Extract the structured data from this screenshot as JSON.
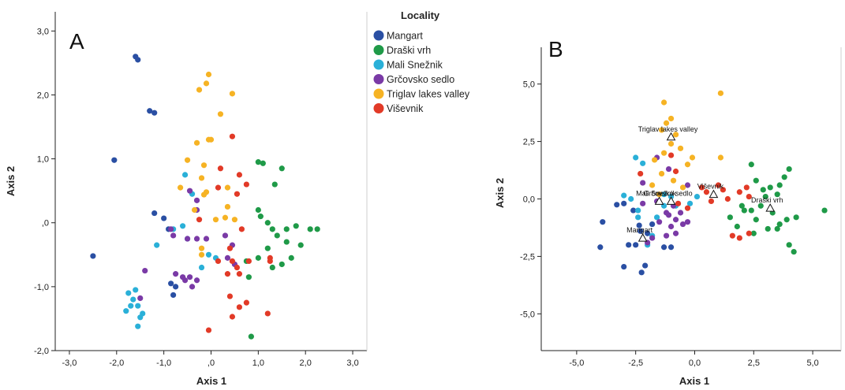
{
  "legend": {
    "title": "Locality"
  },
  "colors": {
    "Mangart": "#2a4fa3",
    "Draški vrh": "#1f9a48",
    "Mali Snežnik": "#2ab0d8",
    "Grčovsko sedlo": "#7a3aa6",
    "Triglav lakes valley": "#f6b324",
    "Viševnik": "#e23a27"
  },
  "chart_data": [
    {
      "type": "scatter",
      "panel": "A",
      "xlabel": "Axis 1",
      "ylabel": "Axis 2",
      "xlim": [
        -3.3,
        3.3
      ],
      "ylim": [
        -2.0,
        3.3
      ],
      "xticks": [
        -3,
        -2,
        -1,
        0,
        1,
        2,
        3
      ],
      "xtick_labels": [
        "-3,0",
        "-2,0",
        "-1,0",
        ",0",
        "1,0",
        "2,0",
        "3,0"
      ],
      "yticks": [
        -2,
        -1,
        0,
        1,
        2,
        3
      ],
      "ytick_labels": [
        "-2,0",
        "-1,0",
        ",0",
        "1,0",
        "2,0",
        "3,0"
      ],
      "series": [
        {
          "name": "Mangart",
          "points": [
            [
              -1.6,
              2.6
            ],
            [
              -1.55,
              2.55
            ],
            [
              -1.3,
              1.75
            ],
            [
              -1.2,
              1.72
            ],
            [
              -2.05,
              0.98
            ],
            [
              -2.5,
              -0.52
            ],
            [
              -1.2,
              0.15
            ],
            [
              -1.0,
              0.07
            ],
            [
              -0.9,
              -0.1
            ],
            [
              -0.85,
              -0.95
            ],
            [
              -0.75,
              -1.0
            ],
            [
              -0.8,
              -1.13
            ]
          ]
        },
        {
          "name": "Draški vrh",
          "points": [
            [
              1.0,
              0.95
            ],
            [
              1.1,
              0.93
            ],
            [
              1.5,
              0.85
            ],
            [
              1.35,
              0.6
            ],
            [
              1.0,
              0.2
            ],
            [
              1.05,
              0.1
            ],
            [
              1.2,
              0.0
            ],
            [
              1.3,
              -0.1
            ],
            [
              1.6,
              -0.1
            ],
            [
              1.8,
              -0.05
            ],
            [
              2.1,
              -0.1
            ],
            [
              2.25,
              -0.1
            ],
            [
              1.4,
              -0.2
            ],
            [
              1.6,
              -0.3
            ],
            [
              1.9,
              -0.35
            ],
            [
              1.2,
              -0.4
            ],
            [
              1.7,
              -0.55
            ],
            [
              1.5,
              -0.65
            ],
            [
              1.3,
              -0.7
            ],
            [
              1.0,
              -0.55
            ],
            [
              0.75,
              -0.6
            ],
            [
              0.8,
              -0.85
            ],
            [
              0.85,
              -1.78
            ]
          ]
        },
        {
          "name": "Mali Snežnik",
          "points": [
            [
              -0.55,
              0.75
            ],
            [
              -0.4,
              0.45
            ],
            [
              -0.8,
              -0.1
            ],
            [
              -0.6,
              -0.05
            ],
            [
              -0.5,
              -0.25
            ],
            [
              -1.15,
              -0.35
            ],
            [
              -0.05,
              -0.5
            ],
            [
              0.1,
              -0.55
            ],
            [
              -0.2,
              -0.7
            ],
            [
              -1.6,
              -1.05
            ],
            [
              -1.75,
              -1.1
            ],
            [
              -1.65,
              -1.2
            ],
            [
              -1.7,
              -1.3
            ],
            [
              -1.55,
              -1.3
            ],
            [
              -1.45,
              -1.42
            ],
            [
              -1.8,
              -1.38
            ],
            [
              -1.5,
              -1.48
            ],
            [
              -1.55,
              -1.62
            ]
          ]
        },
        {
          "name": "Grčovsko sedlo",
          "points": [
            [
              -0.45,
              0.5
            ],
            [
              -0.3,
              0.35
            ],
            [
              -0.3,
              0.2
            ],
            [
              -0.85,
              -0.1
            ],
            [
              -0.8,
              -0.2
            ],
            [
              -0.5,
              -0.25
            ],
            [
              -0.3,
              -0.25
            ],
            [
              -0.1,
              -0.25
            ],
            [
              0.3,
              -0.2
            ],
            [
              0.45,
              -0.35
            ],
            [
              0.35,
              -0.55
            ],
            [
              0.5,
              -0.65
            ],
            [
              -1.4,
              -0.75
            ],
            [
              -0.75,
              -0.8
            ],
            [
              -0.6,
              -0.85
            ],
            [
              -0.55,
              -0.9
            ],
            [
              -0.45,
              -0.85
            ],
            [
              -0.3,
              -0.9
            ],
            [
              -0.4,
              -1.0
            ],
            [
              -1.5,
              -1.18
            ]
          ]
        },
        {
          "name": "Triglav lakes valley",
          "points": [
            [
              -0.05,
              2.32
            ],
            [
              -0.1,
              2.18
            ],
            [
              -0.25,
              2.08
            ],
            [
              0.45,
              2.02
            ],
            [
              0.2,
              1.7
            ],
            [
              -0.05,
              1.3
            ],
            [
              0.0,
              1.3
            ],
            [
              -0.3,
              1.25
            ],
            [
              -0.5,
              0.98
            ],
            [
              -0.15,
              0.9
            ],
            [
              -0.2,
              0.7
            ],
            [
              -0.1,
              0.48
            ],
            [
              -0.15,
              0.44
            ],
            [
              -0.65,
              0.55
            ],
            [
              0.35,
              0.55
            ],
            [
              0.35,
              0.25
            ],
            [
              0.5,
              0.05
            ],
            [
              0.1,
              0.05
            ],
            [
              -0.35,
              0.2
            ],
            [
              -0.2,
              -0.4
            ],
            [
              -0.2,
              -0.5
            ],
            [
              0.3,
              0.08
            ]
          ]
        },
        {
          "name": "Viševnik",
          "points": [
            [
              0.45,
              1.35
            ],
            [
              0.2,
              0.85
            ],
            [
              0.6,
              0.75
            ],
            [
              0.75,
              0.6
            ],
            [
              0.15,
              0.55
            ],
            [
              0.55,
              0.45
            ],
            [
              -0.25,
              0.05
            ],
            [
              0.65,
              -0.1
            ],
            [
              0.4,
              -0.4
            ],
            [
              0.15,
              -0.6
            ],
            [
              0.45,
              -0.6
            ],
            [
              0.8,
              -0.6
            ],
            [
              0.55,
              -0.7
            ],
            [
              1.25,
              -0.55
            ],
            [
              1.25,
              -0.6
            ],
            [
              0.35,
              -0.8
            ],
            [
              0.6,
              -0.8
            ],
            [
              0.4,
              -1.15
            ],
            [
              0.75,
              -1.25
            ],
            [
              0.6,
              -1.32
            ],
            [
              0.45,
              -1.47
            ],
            [
              -0.05,
              -1.68
            ],
            [
              1.2,
              -1.42
            ]
          ]
        }
      ]
    },
    {
      "type": "scatter",
      "panel": "B",
      "xlabel": "Axis 1",
      "ylabel": "Axis 2",
      "xlim": [
        -6.5,
        6.2
      ],
      "ylim": [
        -6.6,
        6.6
      ],
      "xticks": [
        -5,
        -2.5,
        0,
        2.5,
        5
      ],
      "xtick_labels": [
        "-5,0",
        "-2,5",
        "0,0",
        "2,5",
        "5,0"
      ],
      "yticks": [
        -5,
        -2.5,
        0,
        2.5,
        5
      ],
      "ytick_labels": [
        "-5,0",
        "-2,5",
        "0,0",
        "2,5",
        "5,0"
      ],
      "series": [
        {
          "name": "Mangart",
          "points": [
            [
              -3.9,
              -1.0
            ],
            [
              -4.0,
              -2.1
            ],
            [
              -3.3,
              -0.25
            ],
            [
              -3.0,
              -0.2
            ],
            [
              -2.6,
              -0.5
            ],
            [
              -2.35,
              -1.15
            ],
            [
              -2.3,
              -1.4
            ],
            [
              -2.5,
              -2.0
            ],
            [
              -2.8,
              -2.0
            ],
            [
              -3.0,
              -2.95
            ],
            [
              -2.1,
              -2.9
            ],
            [
              -2.25,
              -3.2
            ],
            [
              -1.8,
              -1.1
            ],
            [
              -2.0,
              -1.5
            ],
            [
              -1.0,
              -2.1
            ],
            [
              -1.3,
              -2.1
            ]
          ]
        },
        {
          "name": "Draški vrh",
          "points": [
            [
              2.4,
              1.5
            ],
            [
              2.6,
              0.8
            ],
            [
              2.9,
              0.4
            ],
            [
              3.2,
              0.5
            ],
            [
              3.5,
              0.2
            ],
            [
              4.0,
              1.3
            ],
            [
              3.8,
              0.95
            ],
            [
              3.6,
              0.6
            ],
            [
              2.8,
              -0.3
            ],
            [
              2.0,
              -0.3
            ],
            [
              2.4,
              -0.5
            ],
            [
              2.6,
              -0.9
            ],
            [
              3.3,
              -0.6
            ],
            [
              3.9,
              -0.9
            ],
            [
              4.3,
              -0.8
            ],
            [
              3.6,
              -1.1
            ],
            [
              3.1,
              -1.3
            ],
            [
              2.5,
              -1.5
            ],
            [
              2.1,
              -0.5
            ],
            [
              1.5,
              -0.8
            ],
            [
              1.8,
              -1.2
            ],
            [
              3.5,
              -1.3
            ],
            [
              4.0,
              -2.0
            ],
            [
              4.2,
              -2.3
            ],
            [
              5.5,
              -0.5
            ],
            [
              3.0,
              0.1
            ]
          ]
        },
        {
          "name": "Mali Snežnik",
          "points": [
            [
              -2.5,
              1.8
            ],
            [
              -2.2,
              1.55
            ],
            [
              -3.0,
              0.15
            ],
            [
              -2.7,
              0.0
            ],
            [
              -2.4,
              -0.8
            ],
            [
              -1.8,
              -1.6
            ],
            [
              -2.0,
              -2.0
            ],
            [
              -1.3,
              -0.3
            ],
            [
              -0.8,
              -0.3
            ],
            [
              -0.2,
              -0.2
            ],
            [
              0.1,
              0.1
            ],
            [
              -1.0,
              0.1
            ],
            [
              -1.3,
              0.2
            ],
            [
              -2.4,
              -0.5
            ],
            [
              -1.6,
              -0.8
            ]
          ]
        },
        {
          "name": "Grčovsko sedlo",
          "points": [
            [
              -1.6,
              1.8
            ],
            [
              -1.1,
              1.3
            ],
            [
              -2.2,
              0.7
            ],
            [
              -1.6,
              -0.1
            ],
            [
              -0.6,
              -0.6
            ],
            [
              -0.3,
              0.6
            ],
            [
              -0.9,
              -0.3
            ],
            [
              -1.1,
              -0.7
            ],
            [
              -0.8,
              -0.9
            ],
            [
              -0.5,
              -1.1
            ],
            [
              -1.5,
              -1.0
            ],
            [
              -1.2,
              -0.6
            ],
            [
              -2.2,
              -0.2
            ],
            [
              -1.8,
              -1.7
            ],
            [
              -2.0,
              -1.9
            ],
            [
              -1.2,
              -1.6
            ],
            [
              -0.8,
              -1.5
            ],
            [
              -0.3,
              -1.0
            ],
            [
              -1.0,
              -1.2
            ]
          ]
        },
        {
          "name": "Triglav lakes valley",
          "points": [
            [
              -1.3,
              4.2
            ],
            [
              1.1,
              4.6
            ],
            [
              -1.0,
              3.5
            ],
            [
              -1.2,
              3.3
            ],
            [
              -1.4,
              3.0
            ],
            [
              -0.8,
              2.8
            ],
            [
              -1.0,
              2.4
            ],
            [
              -0.6,
              2.2
            ],
            [
              -1.3,
              2.0
            ],
            [
              -1.7,
              1.7
            ],
            [
              -0.1,
              1.8
            ],
            [
              -0.3,
              1.5
            ],
            [
              -1.4,
              1.1
            ],
            [
              -0.9,
              0.8
            ],
            [
              -1.8,
              0.6
            ],
            [
              -1.5,
              0.2
            ],
            [
              -0.5,
              0.5
            ],
            [
              1.1,
              1.8
            ]
          ]
        },
        {
          "name": "Viševnik",
          "points": [
            [
              -1.0,
              1.9
            ],
            [
              -0.8,
              1.2
            ],
            [
              -2.3,
              1.1
            ],
            [
              0.3,
              0.5
            ],
            [
              0.5,
              0.3
            ],
            [
              1.0,
              0.6
            ],
            [
              1.2,
              0.4
            ],
            [
              1.4,
              0.0
            ],
            [
              1.9,
              0.3
            ],
            [
              2.2,
              0.5
            ],
            [
              2.3,
              0.1
            ],
            [
              0.7,
              -0.1
            ],
            [
              -0.7,
              -0.2
            ],
            [
              -0.3,
              -0.4
            ],
            [
              1.6,
              -1.6
            ],
            [
              1.9,
              -1.7
            ],
            [
              2.3,
              -1.5
            ]
          ]
        }
      ],
      "centroids": [
        {
          "label": "Triglav lakes valley",
          "x": -1.0,
          "y": 2.7
        },
        {
          "label": "Viševnik",
          "x": 0.8,
          "y": 0.2
        },
        {
          "label": "Mali Snežnik",
          "x": -1.5,
          "y": -0.1
        },
        {
          "label": "Grčovsko sedlo",
          "x": -1.0,
          "y": -0.1
        },
        {
          "label": "Draški vrh",
          "x": 3.2,
          "y": -0.4
        },
        {
          "label": "Mangart",
          "x": -2.2,
          "y": -1.7
        }
      ]
    }
  ],
  "panelA": {
    "letter": "A"
  },
  "panelB": {
    "letter": "B"
  }
}
